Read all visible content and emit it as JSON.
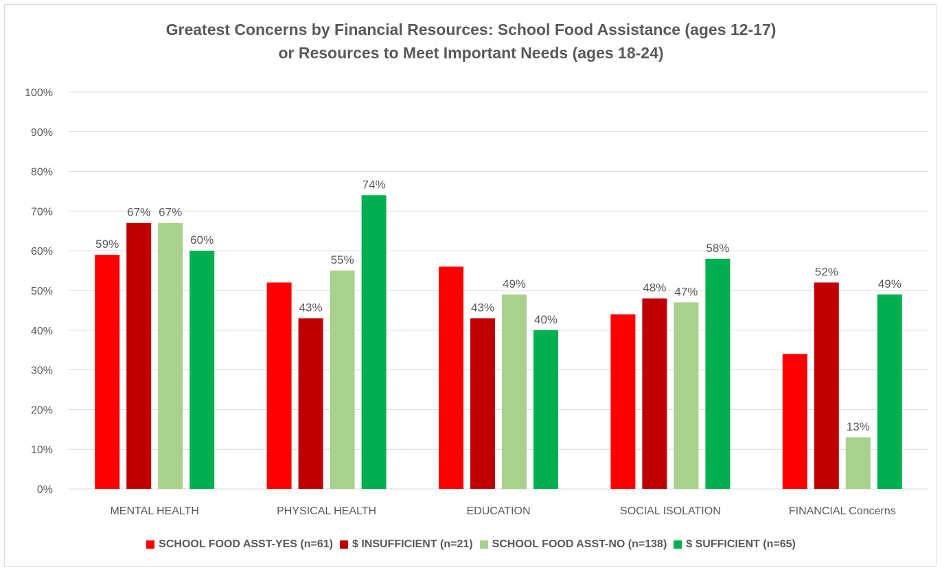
{
  "chart_data": {
    "type": "bar",
    "title_line1": "Greatest Concerns by Financial Resources: School Food Assistance (ages 12-17)",
    "title_line2": "or Resources to Meet Important Needs (ages 18-24)",
    "categories": [
      "MENTAL HEALTH",
      "PHYSICAL HEALTH",
      "EDUCATION",
      "SOCIAL ISOLATION",
      "FINANCIAL Concerns"
    ],
    "series": [
      {
        "name": "SCHOOL FOOD ASST-YES (n=61)",
        "color": "#ff0000",
        "values": [
          59,
          52,
          56,
          44,
          34
        ],
        "labels": [
          "59%",
          "",
          "",
          "",
          ""
        ]
      },
      {
        "name": "$ INSUFFICIENT (n=21)",
        "color": "#c00000",
        "values": [
          67,
          43,
          43,
          48,
          52
        ],
        "labels": [
          "67%",
          "43%",
          "43%",
          "48%",
          "52%"
        ]
      },
      {
        "name": "SCHOOL FOOD ASST-NO (n=138)",
        "color": "#a9d18e",
        "values": [
          67,
          55,
          49,
          47,
          13
        ],
        "labels": [
          "67%",
          "55%",
          "49%",
          "47%",
          "13%"
        ]
      },
      {
        "name": "$ SUFFICIENT (n=65)",
        "color": "#00b050",
        "values": [
          60,
          74,
          40,
          58,
          49
        ],
        "labels": [
          "60%",
          "74%",
          "40%",
          "58%",
          "49%"
        ]
      }
    ],
    "yticks": [
      "0%",
      "10%",
      "20%",
      "30%",
      "40%",
      "50%",
      "60%",
      "70%",
      "80%",
      "90%",
      "100%"
    ],
    "ylim": [
      0,
      100
    ],
    "grid": true,
    "legend_position": "bottom",
    "gridline_color": "#d9d9d9"
  }
}
